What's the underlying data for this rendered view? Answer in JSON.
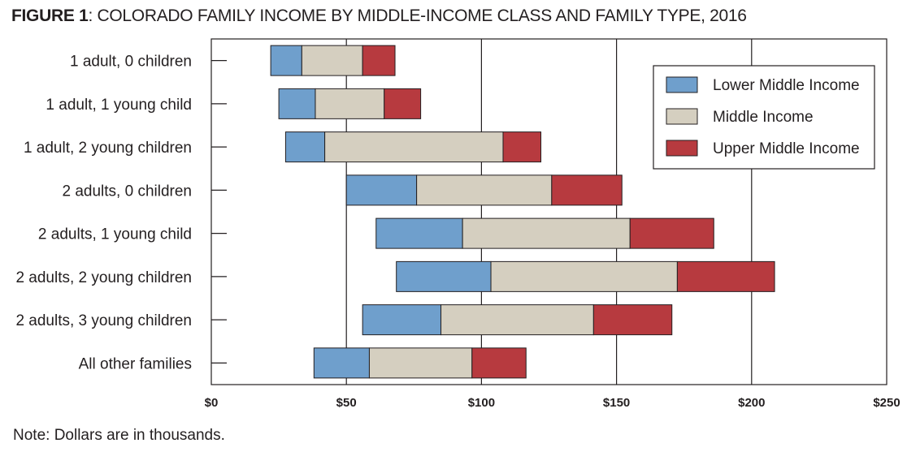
{
  "title": {
    "prefix": "FIGURE 1",
    "text": ": COLORADO FAMILY INCOME BY MIDDLE-INCOME CLASS AND FAMILY TYPE, 2016"
  },
  "note": "Note: Dollars are in thousands.",
  "colors": {
    "lower": "#6f9fcc",
    "middle": "#d5cfc0",
    "upper": "#b73a3f"
  },
  "chart_data": {
    "type": "bar",
    "orientation": "horizontal",
    "stacked": true,
    "title": "COLORADO FAMILY INCOME BY MIDDLE-INCOME CLASS AND FAMILY TYPE, 2016",
    "xlabel": "",
    "ylabel": "",
    "xlim": [
      0,
      250
    ],
    "x_ticks": [
      0,
      50,
      100,
      150,
      200,
      250
    ],
    "x_tick_labels": [
      "$0",
      "$50",
      "$100",
      "$150",
      "$200",
      "$250"
    ],
    "gridlines": [
      50,
      100,
      150,
      200
    ],
    "legend_position": "top-right",
    "categories": [
      "1 adult, 0 children",
      "1 adult, 1 young child",
      "1 adult, 2 young children",
      "2 adults, 0 children",
      "2 adults, 1 young child",
      "2 adults, 2 young children",
      "2 adults, 3 young children",
      "All other families"
    ],
    "series": [
      {
        "name": "Lower Middle Income",
        "key": "lower",
        "start": [
          22,
          25,
          27.5,
          50,
          61,
          68.5,
          56,
          38
        ],
        "end": [
          33.5,
          38.5,
          42,
          76,
          93,
          103.5,
          85,
          58.5
        ]
      },
      {
        "name": "Middle Income",
        "key": "middle",
        "start": [
          33.5,
          38.5,
          42,
          76,
          93,
          103.5,
          85,
          58.5
        ],
        "end": [
          56,
          64,
          108,
          126,
          155,
          172.5,
          141.5,
          96.5
        ]
      },
      {
        "name": "Upper Middle Income",
        "key": "upper",
        "start": [
          56,
          64,
          108,
          126,
          155,
          172.5,
          141.5,
          96.5
        ],
        "end": [
          68,
          77.5,
          122,
          152,
          186,
          208.5,
          170.5,
          116.5
        ]
      }
    ]
  }
}
